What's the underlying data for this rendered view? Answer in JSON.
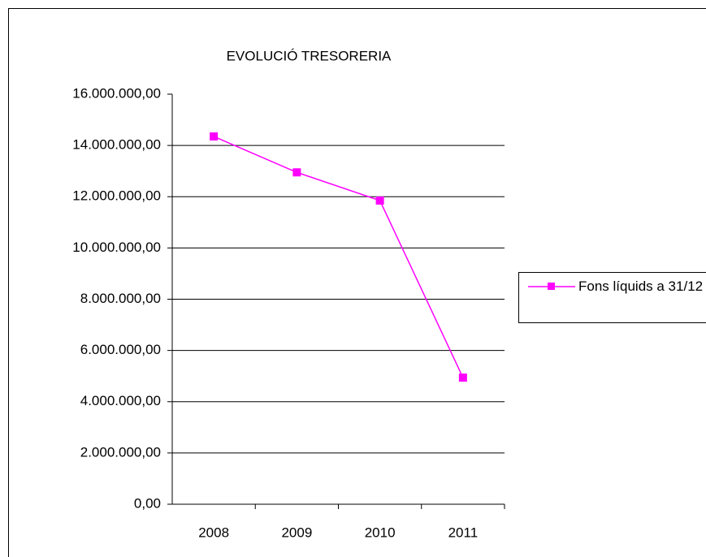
{
  "chart_data": {
    "type": "line",
    "title": "EVOLUCIÓ TRESORERIA",
    "categories": [
      "2008",
      "2009",
      "2010",
      "2011"
    ],
    "series": [
      {
        "name": "Fons líquids a 31/12",
        "color": "#ff00ff",
        "values": [
          14350000,
          12950000,
          11850000,
          4940000
        ]
      }
    ],
    "ylim": [
      0,
      16000000
    ],
    "yticks": [
      {
        "value": 0,
        "label": "0,00"
      },
      {
        "value": 2000000,
        "label": "2.000.000,00"
      },
      {
        "value": 4000000,
        "label": "4.000.000,00"
      },
      {
        "value": 6000000,
        "label": "6.000.000,00"
      },
      {
        "value": 8000000,
        "label": "8.000.000,00"
      },
      {
        "value": 10000000,
        "label": "10.000.000,00"
      },
      {
        "value": 12000000,
        "label": "12.000.000,00"
      },
      {
        "value": 14000000,
        "label": "14.000.000,00"
      },
      {
        "value": 16000000,
        "label": "16.000.000,00"
      }
    ],
    "grid": true,
    "legend": "right"
  }
}
